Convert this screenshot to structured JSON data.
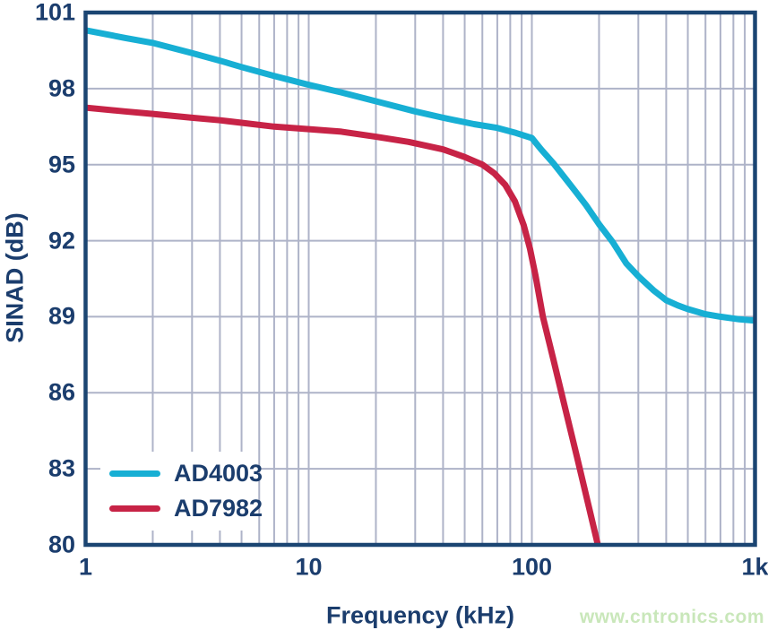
{
  "chart_data": {
    "type": "line",
    "title": "",
    "xlabel": "Frequency (kHz)",
    "ylabel": "SINAD (dB)",
    "x_scale": "log",
    "xlim": [
      1,
      1000
    ],
    "ylim": [
      80,
      101
    ],
    "x_ticks": [
      {
        "v": 1,
        "label": "1"
      },
      {
        "v": 10,
        "label": "10"
      },
      {
        "v": 100,
        "label": "100"
      },
      {
        "v": 1000,
        "label": "1k"
      }
    ],
    "y_ticks": [
      {
        "v": 101,
        "label": "101"
      },
      {
        "v": 98,
        "label": "98"
      },
      {
        "v": 95,
        "label": "95"
      },
      {
        "v": 92,
        "label": "92"
      },
      {
        "v": 89,
        "label": "89"
      },
      {
        "v": 86,
        "label": "86"
      },
      {
        "v": 83,
        "label": "83"
      },
      {
        "v": 80,
        "label": "80"
      }
    ],
    "grid": {
      "color": "#AEB3C8",
      "width": 2,
      "x_log_minors": true,
      "y_minors": false
    },
    "axis_color": "#1B4572",
    "axis_width": 4.5,
    "label_color": "#1B3D6D",
    "line_width": 7,
    "legend_position": "bottom-left",
    "series": [
      {
        "name": "AD4003",
        "color": "#17AFD4",
        "points": [
          [
            1,
            100.3
          ],
          [
            1.5,
            100.0
          ],
          [
            2,
            99.8
          ],
          [
            3,
            99.4
          ],
          [
            4,
            99.1
          ],
          [
            5,
            98.85
          ],
          [
            7,
            98.5
          ],
          [
            10,
            98.15
          ],
          [
            14,
            97.85
          ],
          [
            20,
            97.5
          ],
          [
            30,
            97.1
          ],
          [
            40,
            96.85
          ],
          [
            55,
            96.6
          ],
          [
            70,
            96.45
          ],
          [
            85,
            96.25
          ],
          [
            100,
            96.05
          ],
          [
            110,
            95.6
          ],
          [
            125,
            95.05
          ],
          [
            140,
            94.5
          ],
          [
            155,
            94.0
          ],
          [
            175,
            93.4
          ],
          [
            200,
            92.65
          ],
          [
            230,
            91.95
          ],
          [
            265,
            91.1
          ],
          [
            300,
            90.6
          ],
          [
            350,
            90.05
          ],
          [
            400,
            89.65
          ],
          [
            450,
            89.45
          ],
          [
            500,
            89.3
          ],
          [
            600,
            89.1
          ],
          [
            700,
            89.0
          ],
          [
            850,
            88.9
          ],
          [
            1000,
            88.85
          ]
        ]
      },
      {
        "name": "AD7982",
        "color": "#C72346",
        "points": [
          [
            1,
            97.25
          ],
          [
            1.5,
            97.1
          ],
          [
            2,
            97.0
          ],
          [
            3,
            96.85
          ],
          [
            4,
            96.75
          ],
          [
            5,
            96.65
          ],
          [
            7,
            96.5
          ],
          [
            10,
            96.4
          ],
          [
            14,
            96.3
          ],
          [
            20,
            96.1
          ],
          [
            28,
            95.9
          ],
          [
            40,
            95.6
          ],
          [
            50,
            95.3
          ],
          [
            60,
            95.0
          ],
          [
            68,
            94.65
          ],
          [
            76,
            94.2
          ],
          [
            84,
            93.55
          ],
          [
            92,
            92.6
          ],
          [
            98,
            91.7
          ],
          [
            104,
            90.6
          ],
          [
            112,
            89.0
          ],
          [
            125,
            87.3
          ],
          [
            140,
            85.5
          ],
          [
            160,
            83.4
          ],
          [
            180,
            81.5
          ],
          [
            200,
            79.8
          ]
        ]
      }
    ]
  },
  "watermark": {
    "text": "www.cntronics.com",
    "color": "#C9E7BA"
  }
}
